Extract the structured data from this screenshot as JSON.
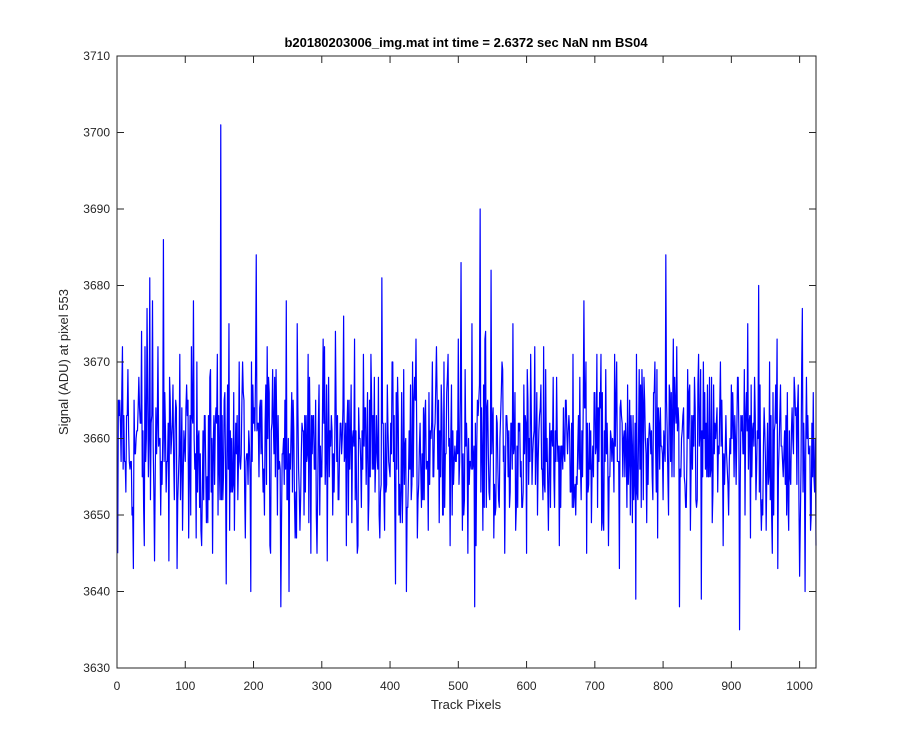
{
  "chart_data": {
    "type": "line",
    "title": "b20180203006_img.mat int time = 2.6372 sec  NaN nm BS04",
    "xlabel": "Track Pixels",
    "ylabel": "Signal (ADU) at pixel 553",
    "xlim": [
      0,
      1024
    ],
    "ylim": [
      3630,
      3710
    ],
    "xticks": [
      "0",
      "100",
      "200",
      "300",
      "400",
      "500",
      "600",
      "700",
      "800",
      "900",
      "1000"
    ],
    "yticks": [
      "3630",
      "3640",
      "3650",
      "3660",
      "3670",
      "3680",
      "3690",
      "3700",
      "3710"
    ],
    "grid": false,
    "legend": "none",
    "series": [
      {
        "color": "#0000ff",
        "n_points": 1024,
        "sampled_points": [
          [
            1,
            3645
          ],
          [
            5,
            3662
          ],
          [
            8,
            3672
          ],
          [
            12,
            3657
          ],
          [
            16,
            3669
          ],
          [
            20,
            3657
          ],
          [
            24,
            3643
          ],
          [
            28,
            3660
          ],
          [
            32,
            3668
          ],
          [
            36,
            3674
          ],
          [
            40,
            3646
          ],
          [
            44,
            3677
          ],
          [
            48,
            3681
          ],
          [
            52,
            3678
          ],
          [
            56,
            3655
          ],
          [
            60,
            3672
          ],
          [
            64,
            3650
          ],
          [
            68,
            3686
          ],
          [
            72,
            3653
          ],
          [
            76,
            3644
          ],
          [
            80,
            3660
          ],
          [
            84,
            3652
          ],
          [
            88,
            3643
          ],
          [
            92,
            3671
          ],
          [
            96,
            3648
          ],
          [
            100,
            3657
          ],
          [
            104,
            3665
          ],
          [
            108,
            3650
          ],
          [
            112,
            3678
          ],
          [
            116,
            3647
          ],
          [
            120,
            3661
          ],
          [
            124,
            3646
          ],
          [
            128,
            3663
          ],
          [
            132,
            3655
          ],
          [
            136,
            3668
          ],
          [
            140,
            3645
          ],
          [
            144,
            3662
          ],
          [
            148,
            3650
          ],
          [
            152,
            3701
          ],
          [
            156,
            3655
          ],
          [
            160,
            3641
          ],
          [
            164,
            3675
          ],
          [
            168,
            3660
          ],
          [
            172,
            3648
          ],
          [
            176,
            3663
          ],
          [
            180,
            3657
          ],
          [
            184,
            3670
          ],
          [
            188,
            3647
          ],
          [
            192,
            3654
          ],
          [
            196,
            3640
          ],
          [
            200,
            3662
          ],
          [
            204,
            3684
          ],
          [
            208,
            3655
          ],
          [
            212,
            3665
          ],
          [
            216,
            3650
          ],
          [
            220,
            3672
          ],
          [
            224,
            3646
          ],
          [
            228,
            3669
          ],
          [
            232,
            3655
          ],
          [
            236,
            3663
          ],
          [
            240,
            3638
          ],
          [
            244,
            3660
          ],
          [
            248,
            3678
          ],
          [
            252,
            3640
          ],
          [
            256,
            3666
          ],
          [
            260,
            3652
          ],
          [
            264,
            3675
          ],
          [
            268,
            3648
          ],
          [
            272,
            3661
          ],
          [
            276,
            3653
          ],
          [
            280,
            3671
          ],
          [
            284,
            3645
          ],
          [
            288,
            3663
          ],
          [
            292,
            3650
          ],
          [
            296,
            3667
          ],
          [
            300,
            3655
          ],
          [
            304,
            3672
          ],
          [
            308,
            3644
          ],
          [
            312,
            3661
          ],
          [
            316,
            3650
          ],
          [
            320,
            3674
          ],
          [
            324,
            3652
          ],
          [
            328,
            3662
          ],
          [
            332,
            3676
          ],
          [
            336,
            3646
          ],
          [
            340,
            3665
          ],
          [
            344,
            3649
          ],
          [
            348,
            3673
          ],
          [
            352,
            3645
          ],
          [
            356,
            3660
          ],
          [
            360,
            3656
          ],
          [
            364,
            3664
          ],
          [
            368,
            3648
          ],
          [
            372,
            3671
          ],
          [
            376,
            3656
          ],
          [
            380,
            3663
          ],
          [
            384,
            3650
          ],
          [
            388,
            3681
          ],
          [
            392,
            3648
          ],
          [
            396,
            3667
          ],
          [
            400,
            3655
          ],
          [
            404,
            3670
          ],
          [
            408,
            3641
          ],
          [
            412,
            3663
          ],
          [
            416,
            3653
          ],
          [
            420,
            3669
          ],
          [
            424,
            3640
          ],
          [
            428,
            3661
          ],
          [
            432,
            3654
          ],
          [
            436,
            3668
          ],
          [
            440,
            3647
          ],
          [
            444,
            3662
          ],
          [
            448,
            3652
          ],
          [
            452,
            3665
          ],
          [
            456,
            3648
          ],
          [
            460,
            3660
          ],
          [
            464,
            3655
          ],
          [
            468,
            3672
          ],
          [
            472,
            3649
          ],
          [
            476,
            3663
          ],
          [
            480,
            3651
          ],
          [
            484,
            3668
          ],
          [
            488,
            3646
          ],
          [
            492,
            3661
          ],
          [
            496,
            3657
          ],
          [
            500,
            3673
          ],
          [
            504,
            3683
          ],
          [
            508,
            3650
          ],
          [
            512,
            3662
          ],
          [
            516,
            3654
          ],
          [
            520,
            3675
          ],
          [
            524,
            3638
          ],
          [
            528,
            3665
          ],
          [
            532,
            3690
          ],
          [
            536,
            3648
          ],
          [
            540,
            3674
          ],
          [
            544,
            3658
          ],
          [
            548,
            3682
          ],
          [
            552,
            3647
          ],
          [
            556,
            3663
          ],
          [
            560,
            3651
          ],
          [
            564,
            3670
          ],
          [
            568,
            3645
          ],
          [
            572,
            3661
          ],
          [
            576,
            3653
          ],
          [
            580,
            3675
          ],
          [
            584,
            3648
          ],
          [
            588,
            3662
          ],
          [
            592,
            3657
          ],
          [
            596,
            3667
          ],
          [
            600,
            3645
          ],
          [
            604,
            3660
          ],
          [
            608,
            3654
          ],
          [
            612,
            3672
          ],
          [
            616,
            3650
          ],
          [
            620,
            3664
          ],
          [
            624,
            3652
          ],
          [
            628,
            3669
          ],
          [
            632,
            3648
          ],
          [
            636,
            3661
          ],
          [
            640,
            3655
          ],
          [
            644,
            3668
          ],
          [
            648,
            3646
          ],
          [
            652,
            3659
          ],
          [
            656,
            3657
          ],
          [
            660,
            3658
          ],
          [
            664,
            3653
          ],
          [
            668,
            3671
          ],
          [
            672,
            3650
          ],
          [
            676,
            3663
          ],
          [
            680,
            3652
          ],
          [
            684,
            3678
          ],
          [
            688,
            3645
          ],
          [
            692,
            3662
          ],
          [
            696,
            3656
          ],
          [
            700,
            3666
          ],
          [
            704,
            3651
          ],
          [
            708,
            3664
          ],
          [
            712,
            3649
          ],
          [
            716,
            3669
          ],
          [
            720,
            3646
          ],
          [
            724,
            3660
          ],
          [
            728,
            3653
          ],
          [
            732,
            3670
          ],
          [
            736,
            3643
          ],
          [
            740,
            3662
          ],
          [
            744,
            3655
          ],
          [
            748,
            3667
          ],
          [
            752,
            3650
          ],
          [
            756,
            3663
          ],
          [
            760,
            3639
          ],
          [
            764,
            3660
          ],
          [
            768,
            3651
          ],
          [
            772,
            3668
          ],
          [
            776,
            3649
          ],
          [
            780,
            3662
          ],
          [
            784,
            3655
          ],
          [
            788,
            3670
          ],
          [
            792,
            3647
          ],
          [
            796,
            3664
          ],
          [
            800,
            3652
          ],
          [
            804,
            3684
          ],
          [
            808,
            3650
          ],
          [
            812,
            3666
          ],
          [
            816,
            3655
          ],
          [
            820,
            3672
          ],
          [
            824,
            3638
          ],
          [
            828,
            3661
          ],
          [
            832,
            3654
          ],
          [
            836,
            3669
          ],
          [
            840,
            3648
          ],
          [
            844,
            3663
          ],
          [
            848,
            3652
          ],
          [
            852,
            3671
          ],
          [
            856,
            3639
          ],
          [
            860,
            3660
          ],
          [
            864,
            3655
          ],
          [
            868,
            3668
          ],
          [
            872,
            3649
          ],
          [
            876,
            3662
          ],
          [
            880,
            3653
          ],
          [
            884,
            3670
          ],
          [
            888,
            3646
          ],
          [
            892,
            3663
          ],
          [
            896,
            3650
          ],
          [
            900,
            3667
          ],
          [
            904,
            3655
          ],
          [
            908,
            3661
          ],
          [
            912,
            3635
          ],
          [
            916,
            3663
          ],
          [
            920,
            3650
          ],
          [
            924,
            3675
          ],
          [
            928,
            3647
          ],
          [
            932,
            3662
          ],
          [
            936,
            3652
          ],
          [
            940,
            3680
          ],
          [
            944,
            3648
          ],
          [
            948,
            3664
          ],
          [
            952,
            3656
          ],
          [
            956,
            3670
          ],
          [
            960,
            3645
          ],
          [
            964,
            3662
          ],
          [
            968,
            3643
          ],
          [
            972,
            3667
          ],
          [
            976,
            3655
          ],
          [
            980,
            3663
          ],
          [
            984,
            3648
          ],
          [
            988,
            3661
          ],
          [
            992,
            3668
          ],
          [
            996,
            3654
          ],
          [
            1000,
            3642
          ],
          [
            1004,
            3677
          ],
          [
            1008,
            3640
          ],
          [
            1012,
            3663
          ],
          [
            1016,
            3648
          ],
          [
            1020,
            3666
          ],
          [
            1024,
            3646
          ]
        ]
      }
    ]
  }
}
